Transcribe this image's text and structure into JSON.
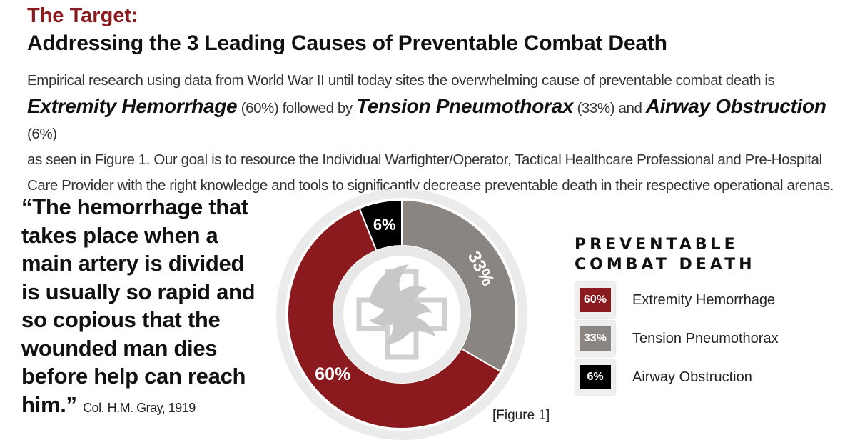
{
  "header": {
    "kicker": "The Target:",
    "headline": "Addressing the 3 Leading Causes of Preventable Combat Death"
  },
  "intro": {
    "p1": "Empirical research using data from World War II until today sites the overwhelming cause of preventable combat death is",
    "cause1": "Extremity Hemorrhage",
    "pct1": " (60%) followed by ",
    "cause2": "Tension Pneumothorax",
    "pct2": " (33%) and ",
    "cause3": "Airway Obstruction",
    "pct3": " (6%)",
    "p2": "as seen in Figure 1. Our goal is to resource the Individual Warfighter/Operator, Tactical Healthcare Professional and Pre-Hospital Care Provider with the right knowledge and tools to significantly decrease preventable death in their respective operational arenas."
  },
  "quote": {
    "text": "“The hemorrhage that takes place when a main artery is divided is usually so rapid and so copious that the wounded man dies before help can reach him.”",
    "attribution": "Col. H.M. Gray, 1919"
  },
  "figure_label": "[Figure 1]",
  "colors": {
    "hemorrhage": "#8b1a1f",
    "pneumothorax": "#8a8580",
    "airway": "#000000",
    "ring": "#ebebeb"
  },
  "chart_data": {
    "type": "pie",
    "title": "PREVENTABLE COMBAT DEATH",
    "series": [
      {
        "name": "Extremity Hemorrhage",
        "value": 60,
        "label": "60%",
        "color": "#8b1a1f"
      },
      {
        "name": "Tension Pneumothorax",
        "value": 33,
        "label": "33%",
        "color": "#8a8580"
      },
      {
        "name": "Airway Obstruction",
        "value": 6,
        "label": "6%",
        "color": "#000000"
      }
    ],
    "legend_placement": "right"
  }
}
